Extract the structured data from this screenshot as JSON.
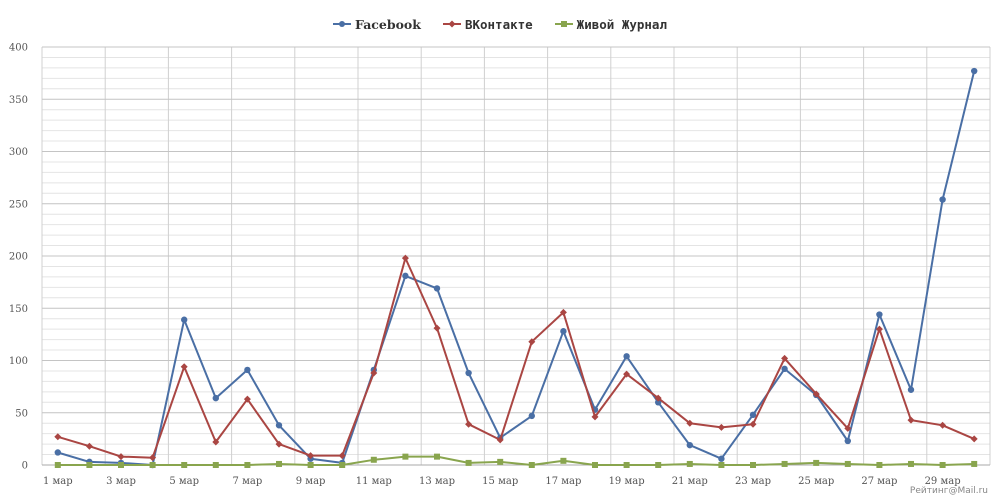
{
  "chart_data": {
    "type": "line",
    "title": "",
    "xlabel": "",
    "ylabel": "",
    "ylim": [
      0,
      400
    ],
    "yticks": [
      0,
      50,
      100,
      150,
      200,
      250,
      300,
      350,
      400
    ],
    "x": [
      "1 мар",
      "2 мар",
      "3 мар",
      "4 мар",
      "5 мар",
      "6 мар",
      "7 мар",
      "8 мар",
      "9 мар",
      "10 мар",
      "11 мар",
      "12 мар",
      "13 мар",
      "14 мар",
      "15 мар",
      "16 мар",
      "17 мар",
      "18 мар",
      "19 мар",
      "20 мар",
      "21 мар",
      "22 мар",
      "23 мар",
      "24 мар",
      "25 мар",
      "26 мар",
      "27 мар",
      "28 мар",
      "29 мар",
      "30 мар"
    ],
    "xtick_labels": [
      "1 мар",
      "3 мар",
      "5 мар",
      "7 мар",
      "9 мар",
      "11 мар",
      "13 мар",
      "15 мар",
      "17 мар",
      "19 мар",
      "21 мар",
      "23 мар",
      "25 мар",
      "27 мар",
      "29 мар"
    ],
    "grid": true,
    "legend_position": "top-center",
    "series": [
      {
        "name": "Facebook",
        "color": "#4a6fa5",
        "marker": "circle",
        "values": [
          12,
          3,
          2,
          0,
          139,
          64,
          91,
          38,
          6,
          2,
          91,
          181,
          169,
          88,
          26,
          47,
          128,
          53,
          104,
          60,
          19,
          6,
          48,
          92,
          67,
          23,
          144,
          72,
          254,
          377
        ]
      },
      {
        "name": "ВКонтакте",
        "color": "#aa4643",
        "marker": "diamond",
        "values": [
          27,
          18,
          8,
          7,
          94,
          22,
          63,
          20,
          9,
          9,
          88,
          198,
          131,
          39,
          24,
          118,
          146,
          46,
          87,
          64,
          40,
          36,
          39,
          102,
          68,
          35,
          130,
          43,
          38,
          25
        ]
      },
      {
        "name": "Живой Журнал",
        "color": "#89a54e",
        "marker": "square",
        "values": [
          0,
          0,
          0,
          0,
          0,
          0,
          0,
          1,
          0,
          0,
          5,
          8,
          8,
          2,
          3,
          0,
          4,
          0,
          0,
          0,
          1,
          0,
          0,
          1,
          2,
          1,
          0,
          1,
          0,
          1
        ]
      }
    ]
  },
  "credit": "Рейтинг@Mail.ru"
}
